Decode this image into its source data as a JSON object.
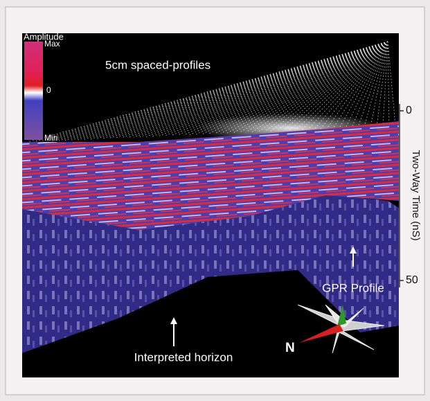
{
  "figure": {
    "title": "5cm spaced-profiles",
    "colorbar": {
      "title": "Amplitude",
      "max": "Max",
      "zero": "0",
      "min": "Min"
    },
    "axis": {
      "label": "Two-Way Time (nS)",
      "ticks": [
        0,
        50
      ]
    },
    "annotations": {
      "gpr_profile": "GPR Profile",
      "horizon": "Interpreted horizon",
      "north": "N"
    }
  }
}
